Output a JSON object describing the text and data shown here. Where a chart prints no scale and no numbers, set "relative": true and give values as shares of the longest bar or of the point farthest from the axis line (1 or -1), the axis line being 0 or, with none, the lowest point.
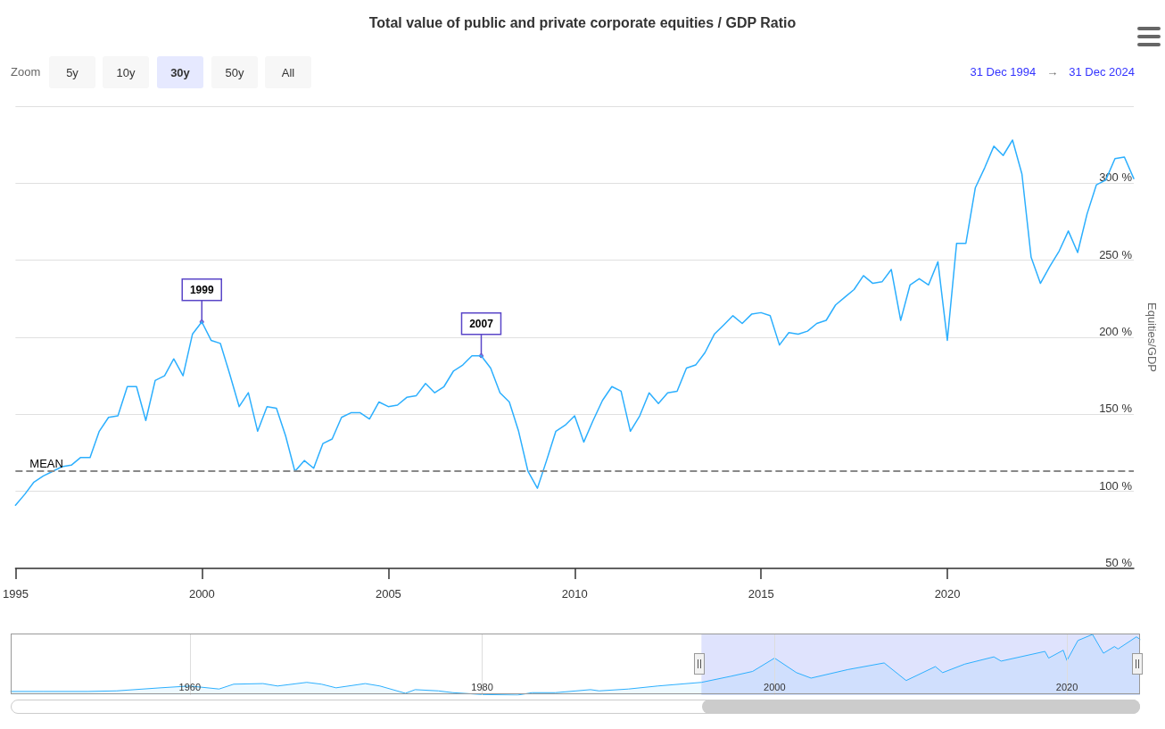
{
  "chart_data": [
    {
      "type": "line",
      "title": "Total value of public and private corporate equities / GDP Ratio",
      "ylabel": "Equities/GDP",
      "grid": "y",
      "marker": "none",
      "line_style": "solid",
      "annotations": [
        "Zoom",
        "5y",
        "10y",
        "30y",
        "50y",
        "All",
        "31 Dec 1994",
        "→",
        "31 Dec 2024",
        {
          "text": "1999",
          "x": "1999-12-31",
          "y": 210
        },
        {
          "text": "2007",
          "x": "2007-06-30",
          "y": 188
        }
      ],
      "ref_lines": [
        {
          "axis": "y",
          "value": 113,
          "label": "MEAN",
          "color": "#888888",
          "line_style": "dashed"
        }
      ],
      "xlim": [
        "1994-12-31",
        "2024-12-31"
      ],
      "xticks": [
        "1995",
        "2000",
        "2005",
        "2010",
        "2015",
        "2020"
      ],
      "ylim": [
        50,
        350
      ],
      "yticks": [
        {
          "value": 50,
          "label": "50 %"
        },
        {
          "value": 100,
          "label": "100 %"
        },
        {
          "value": 150,
          "label": "150 %"
        },
        {
          "value": 200,
          "label": "200 %"
        },
        {
          "value": 250,
          "label": "250 %"
        },
        {
          "value": 300,
          "label": "300 %"
        },
        {
          "value": 350,
          "label": null
        }
      ],
      "x": [
        "1994-12-31",
        "1995-03-31",
        "1995-06-30",
        "1995-09-30",
        "1995-12-31",
        "1996-03-31",
        "1996-06-30",
        "1996-09-30",
        "1996-12-31",
        "1997-03-31",
        "1997-06-30",
        "1997-09-30",
        "1997-12-31",
        "1998-03-31",
        "1998-06-30",
        "1998-09-30",
        "1998-12-31",
        "1999-03-31",
        "1999-06-30",
        "1999-09-30",
        "1999-12-31",
        "2000-03-31",
        "2000-06-30",
        "2000-09-30",
        "2000-12-31",
        "2001-03-31",
        "2001-06-30",
        "2001-09-30",
        "2001-12-31",
        "2002-03-31",
        "2002-06-30",
        "2002-09-30",
        "2002-12-31",
        "2003-03-31",
        "2003-06-30",
        "2003-09-30",
        "2003-12-31",
        "2004-03-31",
        "2004-06-30",
        "2004-09-30",
        "2004-12-31",
        "2005-03-31",
        "2005-06-30",
        "2005-09-30",
        "2005-12-31",
        "2006-03-31",
        "2006-06-30",
        "2006-09-30",
        "2006-12-31",
        "2007-03-31",
        "2007-06-30",
        "2007-09-30",
        "2007-12-31",
        "2008-03-31",
        "2008-06-30",
        "2008-09-30",
        "2008-12-31",
        "2009-03-31",
        "2009-06-30",
        "2009-09-30",
        "2009-12-31",
        "2010-03-31",
        "2010-06-30",
        "2010-09-30",
        "2010-12-31",
        "2011-03-31",
        "2011-06-30",
        "2011-09-30",
        "2011-12-31",
        "2012-03-31",
        "2012-06-30",
        "2012-09-30",
        "2012-12-31",
        "2013-03-31",
        "2013-06-30",
        "2013-09-30",
        "2013-12-31",
        "2014-03-31",
        "2014-06-30",
        "2014-09-30",
        "2014-12-31",
        "2015-03-31",
        "2015-06-30",
        "2015-09-30",
        "2015-12-31",
        "2016-03-31",
        "2016-06-30",
        "2016-09-30",
        "2016-12-31",
        "2017-03-31",
        "2017-06-30",
        "2017-09-30",
        "2017-12-31",
        "2018-03-31",
        "2018-06-30",
        "2018-09-30",
        "2018-12-31",
        "2019-03-31",
        "2019-06-30",
        "2019-09-30",
        "2019-12-31",
        "2020-03-31",
        "2020-06-30",
        "2020-09-30",
        "2020-12-31",
        "2021-03-31",
        "2021-06-30",
        "2021-09-30",
        "2021-12-31",
        "2022-03-31",
        "2022-06-30",
        "2022-09-30",
        "2022-12-31",
        "2023-03-31",
        "2023-06-30",
        "2023-09-30",
        "2023-12-31",
        "2024-03-31",
        "2024-06-30",
        "2024-09-30",
        "2024-12-31"
      ],
      "series": [
        {
          "color": "#2caffe",
          "values": [
            91,
            98,
            106,
            110,
            113,
            116,
            117,
            122,
            122,
            139,
            148,
            149,
            168,
            168,
            146,
            172,
            175,
            186,
            175,
            202,
            210,
            198,
            196,
            176,
            155,
            164,
            139,
            155,
            154,
            136,
            113,
            120,
            115,
            131,
            134,
            148,
            151,
            151,
            147,
            158,
            155,
            156,
            161,
            162,
            170,
            164,
            168,
            178,
            182,
            188,
            188,
            180,
            164,
            158,
            139,
            113,
            102,
            120,
            139,
            143,
            149,
            132,
            146,
            159,
            168,
            165,
            139,
            149,
            164,
            157,
            164,
            165,
            180,
            182,
            190,
            202,
            208,
            214,
            209,
            215,
            216,
            214,
            195,
            203,
            202,
            204,
            209,
            211,
            221,
            226,
            231,
            240,
            235,
            236,
            244,
            211,
            234,
            238,
            234,
            249,
            198,
            261,
            261,
            297,
            310,
            324,
            318,
            328,
            306,
            252,
            235,
            246,
            256,
            269,
            255,
            280,
            299,
            302,
            316,
            317,
            303
          ]
        }
      ]
    },
    {
      "type": "area",
      "relative": true,
      "grid": "x",
      "marker": "none",
      "xlim": [
        "1947-10",
        "2024-12-31"
      ],
      "xticks": [
        "1960",
        "1980",
        "2000",
        "2020"
      ],
      "bands": [
        {
          "axis": "x",
          "from": "1994-12-31",
          "to": "2024-12-31",
          "color": "#c9d1fb"
        }
      ],
      "x": [
        "1947-10",
        "1950-01",
        "1953-01",
        "1955-01",
        "1958-01",
        "1960-01",
        "1962-01",
        "1963-01",
        "1965-01",
        "1966-01",
        "1968-01",
        "1969-01",
        "1970-01",
        "1972-01",
        "1973-01",
        "1974-10",
        "1975-06",
        "1977-01",
        "1978-01",
        "1980-01",
        "1982-06",
        "1983-06",
        "1985-01",
        "1987-06",
        "1988-01",
        "1990-01",
        "1992-01",
        "1995-01",
        "1997-01",
        "1998-07",
        "2000-01",
        "2001-07",
        "2002-07",
        "2005-01",
        "2007-07",
        "2009-01",
        "2011-01",
        "2011-07",
        "2013-01",
        "2015-01",
        "2015-07",
        "2018-07",
        "2018-10",
        "2019-10",
        "2020-01",
        "2020-10",
        "2021-10",
        "2022-07",
        "2023-04",
        "2023-07",
        "2024-10",
        "2024-12-31"
      ],
      "series": [
        {
          "color": "#2caffe",
          "values": [
            0.06,
            0.06,
            0.06,
            0.07,
            0.12,
            0.15,
            0.1,
            0.18,
            0.19,
            0.15,
            0.21,
            0.18,
            0.12,
            0.19,
            0.15,
            0.03,
            0.09,
            0.07,
            0.04,
            0.01,
            0,
            0.04,
            0.04,
            0.09,
            0.07,
            0.1,
            0.15,
            0.21,
            0.31,
            0.39,
            0.61,
            0.37,
            0.28,
            0.42,
            0.53,
            0.24,
            0.47,
            0.37,
            0.51,
            0.63,
            0.56,
            0.72,
            0.61,
            0.74,
            0.57,
            0.9,
            1,
            0.69,
            0.8,
            0.76,
            0.96,
            0.92
          ]
        }
      ]
    }
  ]
}
